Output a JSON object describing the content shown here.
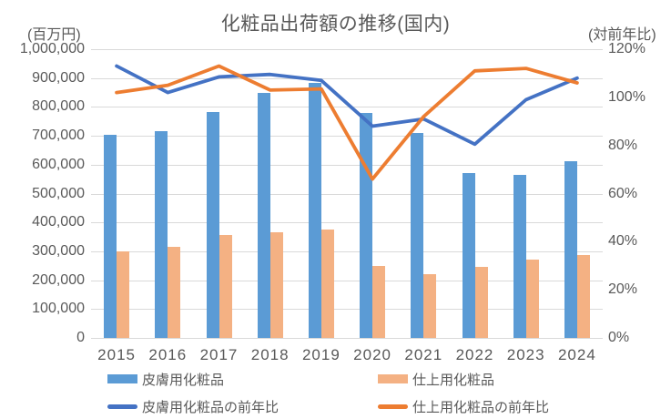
{
  "chart_data": {
    "type": "combo-bar-line",
    "title": "化粧品出荷額の推移(国内)",
    "left_axis": {
      "unit_label": "(百万円)",
      "min": 0,
      "max": 1000000,
      "tick_step": 100000,
      "tick_labels_top_to_bottom": [
        "1,000,000",
        "900,000",
        "800,000",
        "700,000",
        "600,000",
        "500,000",
        "400,000",
        "300,000",
        "200,000",
        "100,000",
        "0"
      ]
    },
    "right_axis": {
      "unit_label": "(対前年比)",
      "min": 0,
      "max": 120,
      "tick_step": 20,
      "tick_labels_top_to_bottom": [
        "120%",
        "100%",
        "80%",
        "60%",
        "40%",
        "20%",
        "0%"
      ]
    },
    "categories": [
      "2015",
      "2016",
      "2017",
      "2018",
      "2019",
      "2020",
      "2021",
      "2022",
      "2023",
      "2024"
    ],
    "series": [
      {
        "id": "skin-cosmetics",
        "name": "皮膚用化粧品",
        "type": "bar",
        "axis": "left",
        "color": "#5B9BD5",
        "values": [
          705000,
          717000,
          781000,
          850000,
          884000,
          780000,
          711000,
          572000,
          565000,
          612000
        ]
      },
      {
        "id": "finishing-cosmetics",
        "name": "仕上用化粧品",
        "type": "bar",
        "axis": "left",
        "color": "#F4B183",
        "values": [
          300000,
          314000,
          355000,
          365000,
          374000,
          249000,
          222000,
          247000,
          272000,
          287000
        ]
      },
      {
        "id": "skin-cosmetics-yoy",
        "name": "皮膚用化粧品の前年比",
        "type": "line",
        "axis": "right",
        "color": "#4472C4",
        "values_percent": [
          113,
          102,
          108.5,
          109.5,
          107,
          88,
          91,
          80.5,
          99,
          108
        ]
      },
      {
        "id": "finishing-cosmetics-yoy",
        "name": "仕上用化粧品の前年比",
        "type": "line",
        "axis": "right",
        "color": "#ED7D31",
        "values_percent": [
          102,
          105,
          113,
          103,
          103.5,
          66,
          92,
          111,
          112,
          106
        ]
      }
    ],
    "legend_position": "bottom",
    "grid": true
  }
}
